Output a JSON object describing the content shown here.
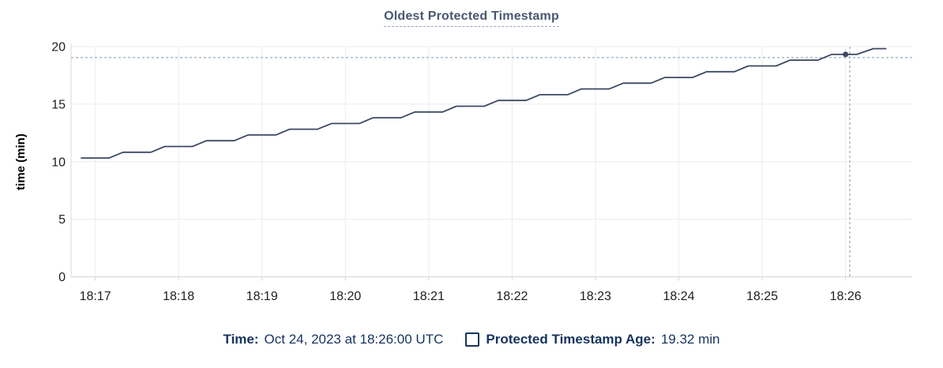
{
  "chart_data": {
    "type": "line",
    "title": "Oldest Protected Timestamp",
    "ylabel": "time (min)",
    "ylim": [
      0,
      20
    ],
    "yticks": [
      0,
      5,
      10,
      15,
      20
    ],
    "grid": true,
    "legend_position": "bottom",
    "x_ticks": [
      {
        "label": "18:17",
        "t_sec": 10
      },
      {
        "label": "18:18",
        "t_sec": 70
      },
      {
        "label": "18:19",
        "t_sec": 130
      },
      {
        "label": "18:20",
        "t_sec": 190
      },
      {
        "label": "18:21",
        "t_sec": 250
      },
      {
        "label": "18:22",
        "t_sec": 310
      },
      {
        "label": "18:23",
        "t_sec": 370
      },
      {
        "label": "18:24",
        "t_sec": 430
      },
      {
        "label": "18:25",
        "t_sec": 490
      },
      {
        "label": "18:26",
        "t_sec": 550
      }
    ],
    "x_axis_note": "t_sec = seconds after first plotted sample (18:16:50 UTC)",
    "series": [
      {
        "name": "Protected Timestamp Age",
        "unit": "min",
        "points": [
          [
            0,
            10.32
          ],
          [
            20,
            10.32
          ],
          [
            30,
            10.82
          ],
          [
            50,
            10.82
          ],
          [
            60,
            11.32
          ],
          [
            80,
            11.32
          ],
          [
            90,
            11.82
          ],
          [
            110,
            11.82
          ],
          [
            120,
            12.32
          ],
          [
            140,
            12.32
          ],
          [
            150,
            12.82
          ],
          [
            170,
            12.82
          ],
          [
            180,
            13.32
          ],
          [
            200,
            13.32
          ],
          [
            210,
            13.82
          ],
          [
            230,
            13.82
          ],
          [
            240,
            14.32
          ],
          [
            260,
            14.32
          ],
          [
            270,
            14.82
          ],
          [
            290,
            14.82
          ],
          [
            300,
            15.32
          ],
          [
            320,
            15.32
          ],
          [
            330,
            15.82
          ],
          [
            350,
            15.82
          ],
          [
            360,
            16.32
          ],
          [
            380,
            16.32
          ],
          [
            390,
            16.82
          ],
          [
            410,
            16.82
          ],
          [
            420,
            17.32
          ],
          [
            440,
            17.32
          ],
          [
            450,
            17.82
          ],
          [
            470,
            17.82
          ],
          [
            480,
            18.32
          ],
          [
            500,
            18.32
          ],
          [
            510,
            18.82
          ],
          [
            530,
            18.82
          ],
          [
            540,
            19.32
          ],
          [
            558,
            19.32
          ],
          [
            570,
            19.82
          ],
          [
            579,
            19.82
          ]
        ]
      }
    ],
    "crosshair": {
      "time_label": "18:26:00",
      "dot_t_sec": 550,
      "dot_value": 19.32,
      "mouse_t_sec": 553,
      "mouse_value": 19.05
    },
    "colors": {
      "line": "#3c4963",
      "dot": "#3c4963",
      "crosshair": "#a7bac7",
      "grid": "#ececec",
      "axis": "#d9d9d9",
      "tick_text": "#202020",
      "axis_label_text": "#000000",
      "title_text": "#475872",
      "legend_text": "#16335e"
    }
  },
  "legend": {
    "time_label": "Time:",
    "time_value": "Oct 24, 2023 at 18:26:00 UTC",
    "series_label": "Protected Timestamp Age:",
    "series_value": "19.32 min"
  }
}
